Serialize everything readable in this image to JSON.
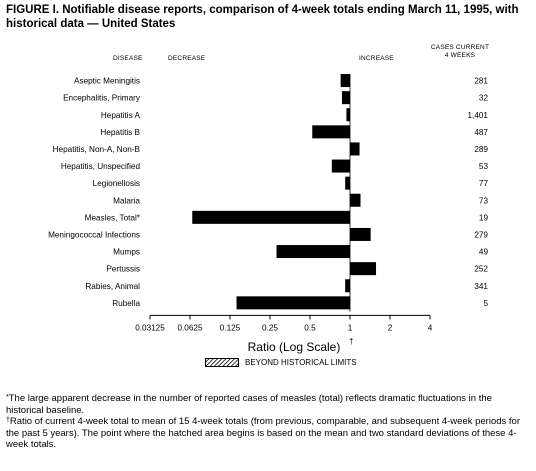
{
  "title": "FIGURE I. Notifiable disease reports, comparison of 4-week totals ending March 11, 1995, with historical data — United States",
  "headers": {
    "disease": "DISEASE",
    "decrease": "DECREASE",
    "increase": "INCREASE",
    "cases_line1": "CASES CURRENT",
    "cases_line2": "4 WEEKS"
  },
  "chart_data": {
    "type": "bar",
    "orientation": "horizontal",
    "xlabel": "Ratio (Log Scale)",
    "xlabel_symbol": "†",
    "xscale": "log2",
    "xlim": [
      0.03125,
      4
    ],
    "baseline": 1,
    "xticks": [
      "0.03125",
      "0.0625",
      "0.125",
      "0.25",
      "0.5",
      "1",
      "2",
      "4"
    ],
    "categories": [
      "Aseptic Meningitis",
      "Encephalitis, Primary",
      "Hepatitis A",
      "Hepatitis B",
      "Hepatitis, Non-A, Non-B",
      "Hepatitis, Unspecified",
      "Legionellosis",
      "Malaria",
      "Measles, Total*",
      "Meningococcal Infections",
      "Mumps",
      "Pertussis",
      "Rabies, Animal",
      "Rubella"
    ],
    "values": [
      0.85,
      0.87,
      0.94,
      0.52,
      1.18,
      0.73,
      0.92,
      1.2,
      0.065,
      1.43,
      0.28,
      1.57,
      0.92,
      0.14
    ],
    "cases": [
      "281",
      "32",
      "1,401",
      "487",
      "289",
      "53",
      "77",
      "73",
      "19",
      "279",
      "49",
      "252",
      "341",
      "5"
    ],
    "legend": "BEYOND HISTORICAL LIMITS"
  },
  "footnotes": {
    "measles_symbol": "*",
    "measles": "The large apparent decrease in the number of reported cases of measles (total) reflects dramatic fluctuations in the historical baseline.",
    "ratio_symbol": "†",
    "ratio": "Ratio of current 4-week total to mean of 15 4-week totals (from previous, comparable, and subsequent 4-week periods for the past 5 years). The point where the hatched area begins is based on the mean and two standard deviations of these 4-week totals."
  }
}
